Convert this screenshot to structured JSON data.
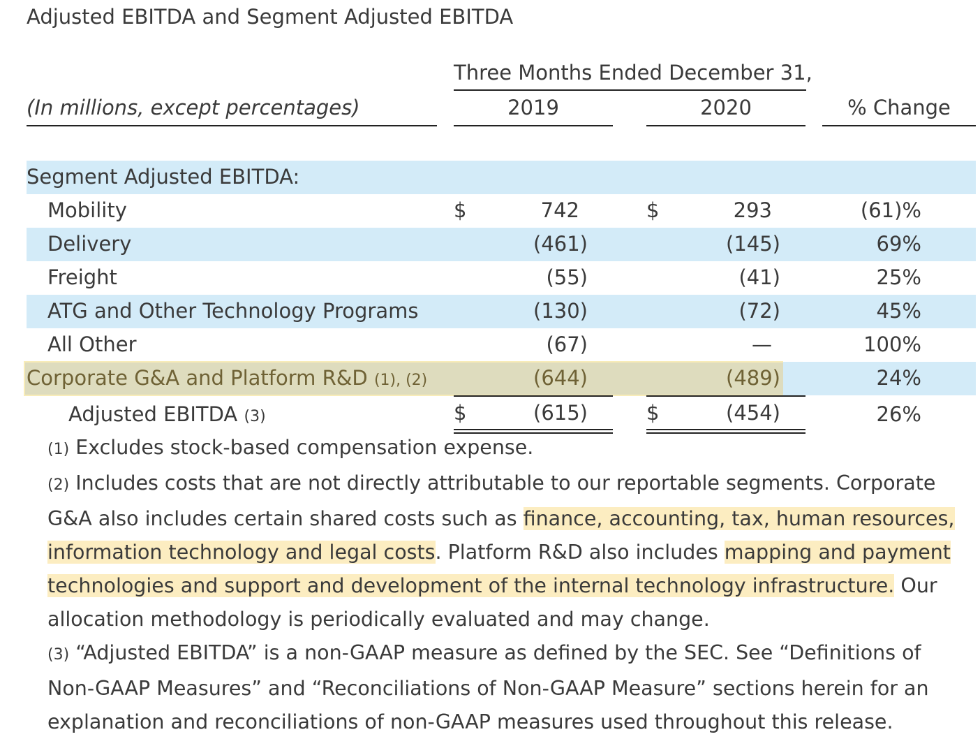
{
  "title": "Adjusted EBITDA and Segment Adjusted EBITDA",
  "header": {
    "period": "Three Months Ended December 31,",
    "units_label": "(In millions, except percentages)",
    "col_2019": "2019",
    "col_2020": "2020",
    "col_change": "% Change"
  },
  "section_label": "Segment Adjusted EBITDA:",
  "currency": "$",
  "rows": [
    {
      "label": "Mobility",
      "v2019": "742",
      "v2020": "293",
      "change": "(61)%"
    },
    {
      "label": "Delivery",
      "v2019": "(461)",
      "v2020": "(145)",
      "change": "69%"
    },
    {
      "label": "Freight",
      "v2019": "(55)",
      "v2020": "(41)",
      "change": "25%"
    },
    {
      "label": "ATG and Other Technology Programs",
      "v2019": "(130)",
      "v2020": "(72)",
      "change": "45%"
    },
    {
      "label": "All Other",
      "v2019": "(67)",
      "v2020": "—",
      "change": "100%"
    }
  ],
  "corporate": {
    "label": "Corporate G&A and Platform R&D",
    "note": "(1), (2)",
    "v2019": "(644)",
    "v2020": "(489)",
    "change": "24%"
  },
  "total": {
    "label": "Adjusted EBITDA",
    "note": "(3)",
    "v2019": "(615)",
    "v2020": "(454)",
    "change": "26%"
  },
  "footnotes": {
    "f1_mark": "(1)",
    "f1_text": " Excludes stock-based compensation expense.",
    "f2_mark": "(2)",
    "f2_line1": " Includes costs that are not directly attributable to our reportable segments. Corporate",
    "f2_line2a": "G&A also includes certain shared costs such as ",
    "f2_line2b": "finance, accounting, tax, human resources,",
    "f2_line3a": "information technology and legal costs",
    "f2_line3b": ". Platform R&D also includes ",
    "f2_line3c": "mapping and payment",
    "f2_line4a": "technologies and support and development of the internal technology infrastructure.",
    "f2_line4b": " Our",
    "f2_line5": "allocation methodology is periodically evaluated and may change.",
    "f3_mark": "(3)",
    "f3_line1": " “Adjusted EBITDA” is a non-GAAP measure as defined by the SEC. See “Definitions of",
    "f3_line2": "Non-GAAP Measures” and “Reconciliations of Non-GAAP Measure” sections herein for an",
    "f3_line3": "explanation and reconciliations of non-GAAP measures used throughout this release."
  }
}
